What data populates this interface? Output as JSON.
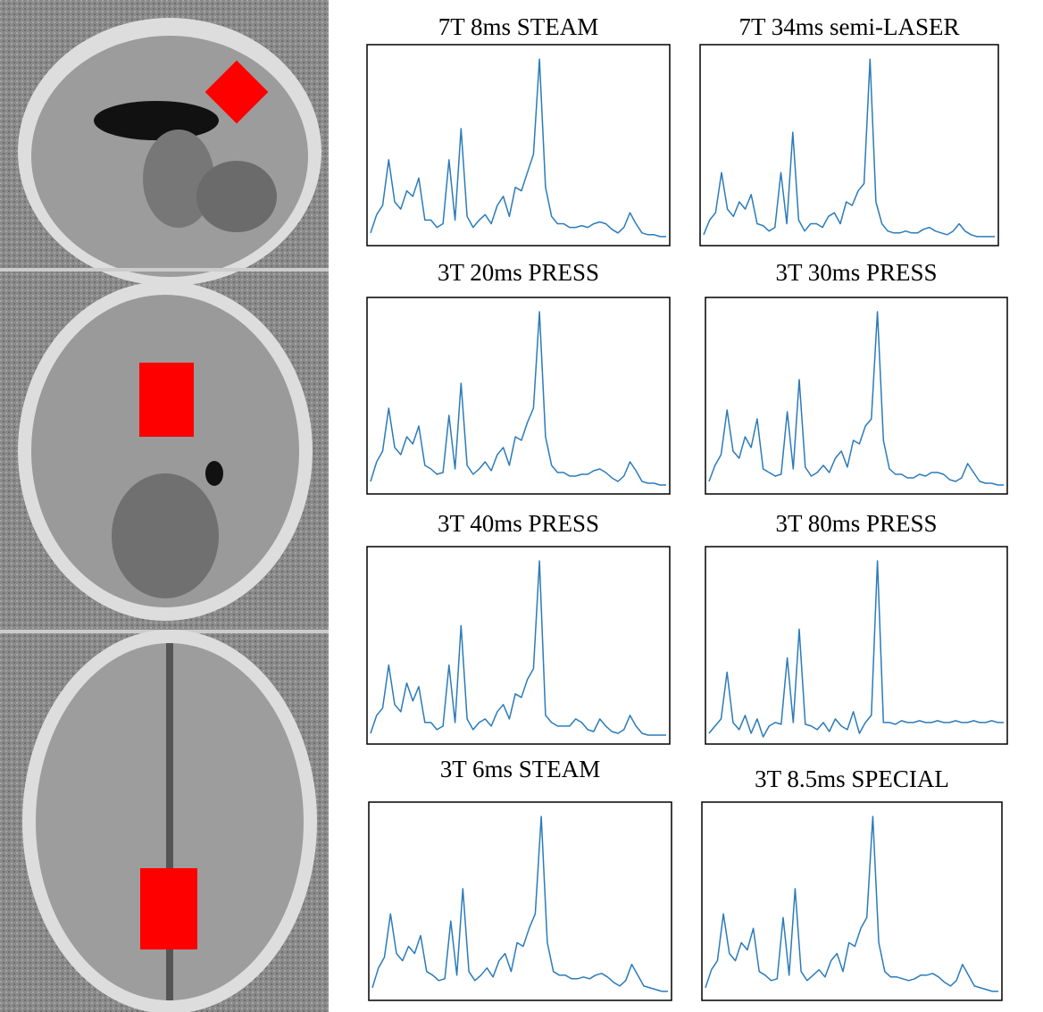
{
  "chart_data": [
    {
      "type": "line",
      "title": "7T 8ms STEAM",
      "color": "#2b7bba",
      "xlim": [
        0,
        49
      ],
      "ylim": [
        0,
        105
      ],
      "x": [
        0,
        1,
        2,
        3,
        4,
        5,
        6,
        7,
        8,
        9,
        10,
        11,
        12,
        13,
        14,
        15,
        16,
        17,
        18,
        19,
        20,
        21,
        22,
        23,
        24,
        25,
        26,
        27,
        28,
        29,
        30,
        31,
        32,
        33,
        34,
        35,
        36,
        37,
        38,
        39,
        40,
        41,
        42,
        43,
        44,
        45,
        46,
        47,
        48,
        49
      ],
      "values": [
        5,
        15,
        20,
        45,
        22,
        18,
        28,
        25,
        35,
        12,
        12,
        8,
        10,
        45,
        12,
        62,
        14,
        8,
        12,
        15,
        10,
        20,
        25,
        14,
        30,
        28,
        38,
        48,
        100,
        30,
        14,
        10,
        10,
        8,
        8,
        9,
        8,
        10,
        11,
        10,
        7,
        5,
        8,
        16,
        10,
        5,
        4,
        4,
        3,
        3
      ]
    },
    {
      "type": "line",
      "title": "7T 34ms semi-LASER",
      "color": "#2b7bba",
      "xlim": [
        0,
        49
      ],
      "ylim": [
        0,
        105
      ],
      "x": [
        0,
        1,
        2,
        3,
        4,
        5,
        6,
        7,
        8,
        9,
        10,
        11,
        12,
        13,
        14,
        15,
        16,
        17,
        18,
        19,
        20,
        21,
        22,
        23,
        24,
        25,
        26,
        27,
        28,
        29,
        30,
        31,
        32,
        33,
        34,
        35,
        36,
        37,
        38,
        39,
        40,
        41,
        42,
        43,
        44,
        45,
        46,
        47,
        48,
        49
      ],
      "values": [
        4,
        12,
        16,
        38,
        18,
        14,
        22,
        18,
        26,
        10,
        9,
        6,
        8,
        38,
        10,
        60,
        12,
        6,
        10,
        10,
        8,
        14,
        16,
        10,
        22,
        20,
        28,
        32,
        100,
        22,
        10,
        6,
        5,
        5,
        6,
        5,
        5,
        7,
        8,
        6,
        5,
        4,
        6,
        10,
        6,
        4,
        3,
        3,
        3,
        3
      ]
    },
    {
      "type": "line",
      "title": "3T 20ms PRESS",
      "color": "#2b7bba",
      "xlim": [
        0,
        49
      ],
      "ylim": [
        0,
        105
      ],
      "x": [
        0,
        1,
        2,
        3,
        4,
        5,
        6,
        7,
        8,
        9,
        10,
        11,
        12,
        13,
        14,
        15,
        16,
        17,
        18,
        19,
        20,
        21,
        22,
        23,
        24,
        25,
        26,
        27,
        28,
        29,
        30,
        31,
        32,
        33,
        34,
        35,
        36,
        37,
        38,
        39,
        40,
        41,
        42,
        43,
        44,
        45,
        46,
        47,
        48,
        49
      ],
      "values": [
        5,
        16,
        22,
        46,
        24,
        20,
        30,
        26,
        36,
        14,
        12,
        9,
        10,
        42,
        12,
        60,
        14,
        9,
        12,
        16,
        11,
        20,
        24,
        14,
        30,
        28,
        38,
        46,
        100,
        30,
        14,
        10,
        10,
        8,
        8,
        9,
        9,
        11,
        12,
        10,
        7,
        5,
        8,
        16,
        11,
        5,
        4,
        4,
        3,
        3
      ]
    },
    {
      "type": "line",
      "title": "3T 30ms PRESS",
      "color": "#2b7bba",
      "xlim": [
        0,
        49
      ],
      "ylim": [
        0,
        105
      ],
      "x": [
        0,
        1,
        2,
        3,
        4,
        5,
        6,
        7,
        8,
        9,
        10,
        11,
        12,
        13,
        14,
        15,
        16,
        17,
        18,
        19,
        20,
        21,
        22,
        23,
        24,
        25,
        26,
        27,
        28,
        29,
        30,
        31,
        32,
        33,
        34,
        35,
        36,
        37,
        38,
        39,
        40,
        41,
        42,
        43,
        44,
        45,
        46,
        47,
        48,
        49
      ],
      "values": [
        5,
        14,
        20,
        45,
        22,
        18,
        30,
        24,
        40,
        12,
        10,
        8,
        9,
        44,
        12,
        62,
        13,
        8,
        10,
        14,
        10,
        18,
        22,
        13,
        28,
        26,
        36,
        40,
        100,
        28,
        12,
        9,
        9,
        7,
        7,
        9,
        8,
        10,
        10,
        9,
        6,
        5,
        7,
        15,
        10,
        5,
        4,
        4,
        3,
        3
      ]
    },
    {
      "type": "line",
      "title": "3T 40ms PRESS",
      "color": "#2b7bba",
      "xlim": [
        0,
        49
      ],
      "ylim": [
        0,
        105
      ],
      "x": [
        0,
        1,
        2,
        3,
        4,
        5,
        6,
        7,
        8,
        9,
        10,
        11,
        12,
        13,
        14,
        15,
        16,
        17,
        18,
        19,
        20,
        21,
        22,
        23,
        24,
        25,
        26,
        27,
        28,
        29,
        30,
        31,
        32,
        33,
        34,
        35,
        36,
        37,
        38,
        39,
        40,
        41,
        42,
        43,
        44,
        45,
        46,
        47,
        48,
        49
      ],
      "values": [
        4,
        14,
        18,
        42,
        20,
        16,
        32,
        22,
        30,
        10,
        10,
        6,
        8,
        42,
        10,
        64,
        12,
        6,
        10,
        12,
        8,
        16,
        20,
        12,
        26,
        24,
        34,
        40,
        100,
        14,
        10,
        8,
        8,
        8,
        12,
        10,
        6,
        5,
        12,
        8,
        5,
        4,
        6,
        14,
        8,
        4,
        3,
        3,
        3,
        3
      ]
    },
    {
      "type": "line",
      "title": "3T 80ms PRESS",
      "color": "#2b7bba",
      "xlim": [
        0,
        49
      ],
      "ylim": [
        0,
        105
      ],
      "x": [
        0,
        1,
        2,
        3,
        4,
        5,
        6,
        7,
        8,
        9,
        10,
        11,
        12,
        13,
        14,
        15,
        16,
        17,
        18,
        19,
        20,
        21,
        22,
        23,
        24,
        25,
        26,
        27,
        28,
        29,
        30,
        31,
        32,
        33,
        34,
        35,
        36,
        37,
        38,
        39,
        40,
        41,
        42,
        43,
        44,
        45,
        46,
        47,
        48,
        49
      ],
      "values": [
        4,
        8,
        12,
        38,
        10,
        6,
        14,
        4,
        12,
        2,
        8,
        10,
        9,
        46,
        10,
        62,
        9,
        8,
        6,
        10,
        5,
        12,
        8,
        6,
        16,
        4,
        10,
        14,
        100,
        10,
        10,
        9,
        11,
        10,
        10,
        11,
        10,
        10,
        11,
        10,
        10,
        11,
        10,
        10,
        11,
        10,
        10,
        11,
        10,
        10
      ]
    },
    {
      "type": "line",
      "title": "3T 6ms STEAM",
      "color": "#2b7bba",
      "xlim": [
        0,
        49
      ],
      "ylim": [
        0,
        105
      ],
      "x": [
        0,
        1,
        2,
        3,
        4,
        5,
        6,
        7,
        8,
        9,
        10,
        11,
        12,
        13,
        14,
        15,
        16,
        17,
        18,
        19,
        20,
        21,
        22,
        23,
        24,
        25,
        26,
        27,
        28,
        29,
        30,
        31,
        32,
        33,
        34,
        35,
        36,
        37,
        38,
        39,
        40,
        41,
        42,
        43,
        44,
        45,
        46,
        47,
        48,
        49
      ],
      "values": [
        5,
        16,
        22,
        46,
        24,
        20,
        28,
        24,
        34,
        14,
        12,
        9,
        10,
        42,
        12,
        60,
        14,
        9,
        12,
        16,
        11,
        20,
        24,
        14,
        30,
        28,
        38,
        46,
        100,
        30,
        14,
        12,
        12,
        10,
        10,
        11,
        10,
        12,
        13,
        11,
        8,
        6,
        9,
        18,
        12,
        6,
        5,
        4,
        3,
        3
      ]
    },
    {
      "type": "line",
      "title": "3T 8.5ms SPECIAL",
      "color": "#2b7bba",
      "xlim": [
        0,
        49
      ],
      "ylim": [
        0,
        105
      ],
      "x": [
        0,
        1,
        2,
        3,
        4,
        5,
        6,
        7,
        8,
        9,
        10,
        11,
        12,
        13,
        14,
        15,
        16,
        17,
        18,
        19,
        20,
        21,
        22,
        23,
        24,
        25,
        26,
        27,
        28,
        29,
        30,
        31,
        32,
        33,
        34,
        35,
        36,
        37,
        38,
        39,
        40,
        41,
        42,
        43,
        44,
        45,
        46,
        47,
        48,
        49
      ],
      "values": [
        5,
        15,
        20,
        46,
        24,
        20,
        30,
        26,
        38,
        14,
        12,
        9,
        10,
        44,
        12,
        60,
        14,
        9,
        12,
        15,
        11,
        20,
        24,
        14,
        30,
        28,
        38,
        44,
        100,
        30,
        14,
        11,
        11,
        10,
        9,
        10,
        12,
        12,
        13,
        11,
        8,
        6,
        9,
        18,
        12,
        6,
        5,
        4,
        3,
        3
      ]
    }
  ]
}
